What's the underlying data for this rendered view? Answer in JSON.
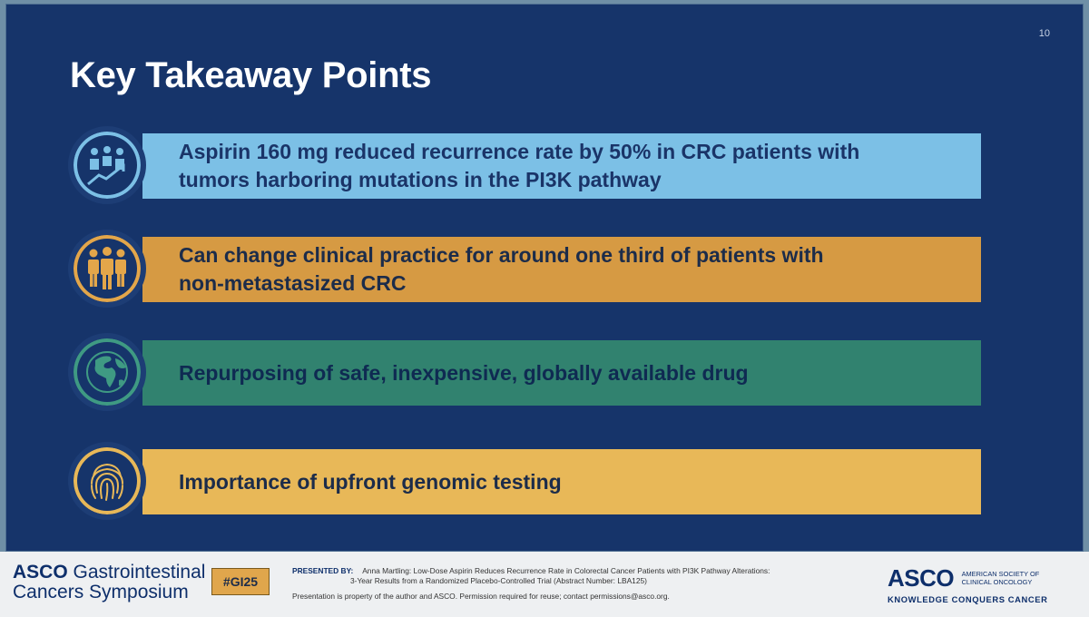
{
  "slide": {
    "page_number": "10",
    "title": "Key Takeaway Points"
  },
  "points": [
    {
      "icon": "people-growth-icon",
      "text_line1": "Aspirin 160 mg reduced recurrence rate by 50% in CRC patients with",
      "text_line2": "tumors harboring mutations in the PI3K pathway",
      "color": "#7cc0e6"
    },
    {
      "icon": "group-people-icon",
      "text_line1": "Can change clinical practice for around one third of patients with",
      "text_line2": "non-metastasized CRC",
      "color": "#d69a43"
    },
    {
      "icon": "globe-icon",
      "text_line1": "Repurposing of safe, inexpensive, globally available drug",
      "text_line2": "",
      "color": "#31826f"
    },
    {
      "icon": "fingerprint-icon",
      "text_line1": "Importance of upfront genomic testing",
      "text_line2": "",
      "color": "#e8b858"
    }
  ],
  "footer": {
    "brand_left_asco": "ASCO",
    "brand_left_line1": "Gastrointestinal",
    "brand_left_line2": "Cancers Symposium",
    "hashtag": "#GI25",
    "presented_label": "PRESENTED BY:",
    "presented_line1": "Anna Martling: Low-Dose Aspirin Reduces Recurrence Rate in Colorectal Cancer Patients with PI3K Pathway Alterations:",
    "presented_line2": "3-Year Results from a Randomized Placebo-Controlled Trial (Abstract Number: LBA125)",
    "permission_note": "Presentation is property of the author and ASCO. Permission required for reuse; contact permissions@asco.org.",
    "brand_right_asco": "ASCO",
    "brand_right_society_line1": "AMERICAN SOCIETY OF",
    "brand_right_society_line2": "CLINICAL ONCOLOGY",
    "brand_right_tagline": "KNOWLEDGE CONQUERS CANCER"
  }
}
